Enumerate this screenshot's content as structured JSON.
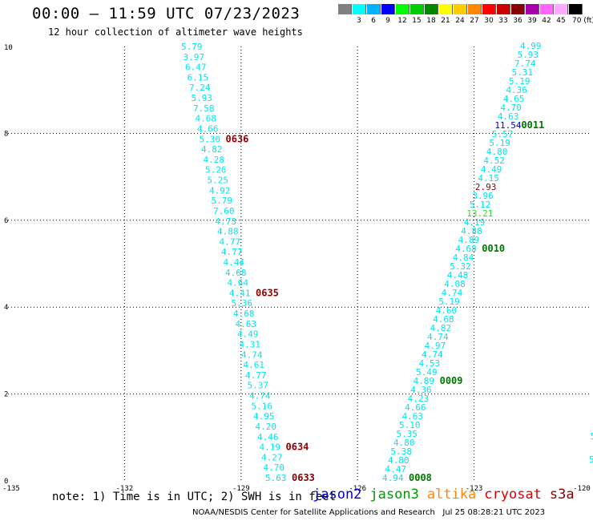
{
  "title": "00:00 – 11:59 UTC 07/23/2023",
  "subtitle": "12 hour collection of altimeter wave heights",
  "colorbar": {
    "colors": [
      "#808080",
      "#00ffff",
      "#00b4ff",
      "#0000ff",
      "#00ff00",
      "#00cc00",
      "#008800",
      "#ffff00",
      "#ffcc00",
      "#ff8800",
      "#ff0000",
      "#cc0000",
      "#880000",
      "#aa00aa",
      "#ff66ff",
      "#ffaaff",
      "#000000"
    ],
    "labels": [
      "",
      "3",
      "6",
      "9",
      "12",
      "15",
      "18",
      "21",
      "24",
      "27",
      "30",
      "33",
      "36",
      "39",
      "42",
      "45",
      "70 (ft)"
    ]
  },
  "axes": {
    "x_ticks": [
      "-135",
      "-132",
      "-129",
      "-126",
      "-123",
      "-120"
    ],
    "y_ticks": [
      "0",
      "2",
      "4",
      "6",
      "8",
      "10"
    ],
    "lon_range": [
      -135,
      -120
    ],
    "lat_range": [
      0,
      10
    ],
    "grid": true
  },
  "track_a": {
    "color": "#00e5ee",
    "values": [
      "5.63",
      "4.70",
      "4.27",
      "4.19",
      "4.46",
      "4.20",
      "4.95",
      "5.16",
      "4.74",
      "5.37",
      "4.77",
      "4.61",
      "4.74",
      "4.31",
      "4.49",
      "4.63",
      "4.68",
      "5.36",
      "4.41",
      "4.64",
      "4.68",
      "4.44",
      "4.77",
      "4.77",
      "4.88",
      "4.73",
      "7.60",
      "5.79",
      "4.92",
      "5.25",
      "5.26",
      "4.28",
      "4.82",
      "5.30",
      "4.66",
      "4.68",
      "7.58",
      "5.93",
      "7.24",
      "6.15",
      "6.47",
      "3.97",
      "5.79"
    ],
    "labels": [
      {
        "text": "0633",
        "value_index": 0
      },
      {
        "text": "0634",
        "value_index": 3
      },
      {
        "text": "0635",
        "value_index": 18
      },
      {
        "text": "0636",
        "value_index": 33
      }
    ]
  },
  "track_b": {
    "color": "#00e5ee",
    "values": [
      "4.94",
      "4.47",
      "4.80",
      "5.38",
      "4.80",
      "5.35",
      "5.10",
      "4.63",
      "4.66",
      "4.23",
      "4.36",
      "4.89",
      "5.49",
      "4.53",
      "4.74",
      "4.97",
      "4.74",
      "4.82",
      "4.68",
      "4.60",
      "5.19",
      "4.74",
      "4.08",
      "4.48",
      "5.32",
      "4.84",
      "4.68",
      "4.89",
      "4.88",
      "4.19",
      "13.21",
      "5.12",
      "3.96",
      "2.93",
      "4.15",
      "4.49",
      "4.52",
      "4.80",
      "5.19",
      "5.57",
      "11.54",
      "4.63",
      "4.70",
      "4.65",
      "4.36",
      "5.19",
      "5.31",
      "7.74",
      "5.93",
      "4.99"
    ],
    "special_colors": {
      "30": "#33dd33",
      "33": "#880000",
      "40": "#0000cc"
    },
    "labels": [
      {
        "text": "0008",
        "value_index": 0
      },
      {
        "text": "0009",
        "value_index": 11
      },
      {
        "text": "0010",
        "value_index": 26
      },
      {
        "text": "0011",
        "value_index": 40
      }
    ]
  },
  "track_c": {
    "color": "#00e5ee",
    "values": [
      "5",
      "5"
    ]
  },
  "label_color": "#880000",
  "label_color_b": "#007700",
  "note": "note: 1) Time is in UTC; 2) SWH is in feet",
  "legend": [
    {
      "name": "jason2",
      "color": "#0000cc"
    },
    {
      "name": "jason3",
      "color": "#009900"
    },
    {
      "name": "altika",
      "color": "#ff8800"
    },
    {
      "name": "cryosat",
      "color": "#dd0000"
    },
    {
      "name": "s3a",
      "color": "#880000"
    }
  ],
  "credit": "NOAA/NESDIS Center for Satellite Applications and Research   Jul 25 08:28:21 UTC 2023"
}
